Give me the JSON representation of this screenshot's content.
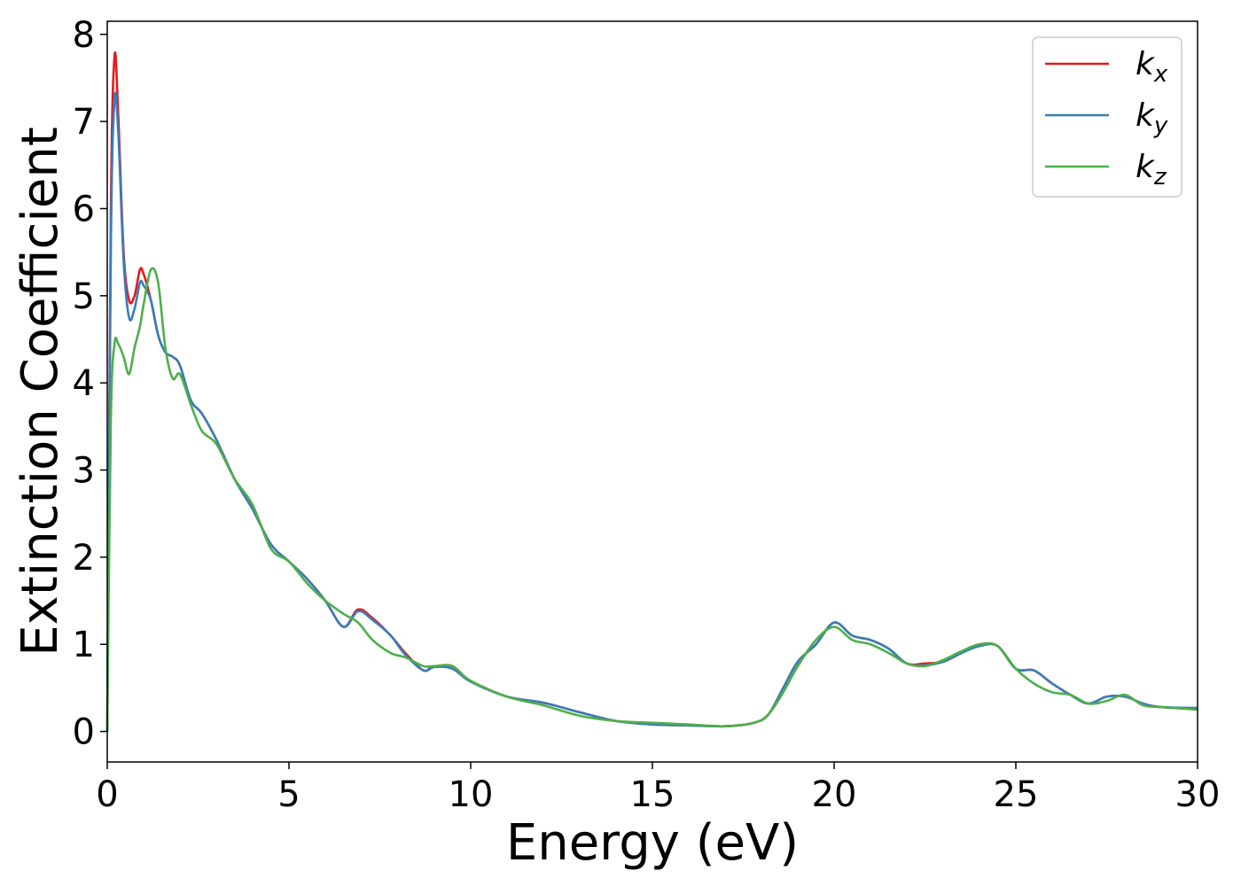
{
  "chart_data": {
    "type": "line",
    "xlabel": "Energy (eV)",
    "ylabel": "Extinction Coefficient",
    "xlim": [
      0,
      30
    ],
    "ylim": [
      -0.35,
      8.15
    ],
    "xticks": [
      0,
      5,
      10,
      15,
      20,
      25,
      30
    ],
    "xtick_labels": [
      "0",
      "5",
      "10",
      "15",
      "20",
      "25",
      "30"
    ],
    "yticks": [
      0,
      1,
      2,
      3,
      4,
      5,
      6,
      7,
      8
    ],
    "ytick_labels": [
      "0",
      "1",
      "2",
      "3",
      "4",
      "5",
      "6",
      "7",
      "8"
    ],
    "grid": false,
    "legend_position": "top-right",
    "series": [
      {
        "name": "k",
        "subscript": "x",
        "color": "#e41a1c",
        "x": [
          0,
          0.1,
          0.2,
          0.3,
          0.45,
          0.6,
          0.75,
          0.9,
          1.0,
          1.2,
          1.4,
          1.6,
          1.8,
          2.0,
          2.3,
          2.6,
          3.0,
          3.5,
          4.0,
          4.5,
          5.0,
          5.5,
          6.0,
          6.5,
          6.9,
          7.3,
          7.8,
          8.2,
          8.7,
          9.0,
          9.5,
          10.0,
          11.0,
          12.0,
          13.0,
          14.0,
          15.0,
          16.0,
          17.0,
          17.8,
          18.2,
          18.6,
          19.0,
          19.5,
          20.0,
          20.5,
          21.0,
          21.5,
          22.0,
          22.5,
          23.0,
          23.5,
          24.0,
          24.5,
          25.0,
          25.5,
          26.0,
          26.5,
          27.0,
          27.5,
          28.0,
          28.5,
          29.0,
          30.0
        ],
        "y": [
          0,
          6.0,
          7.75,
          7.1,
          5.5,
          4.95,
          5.0,
          5.3,
          5.25,
          4.95,
          4.55,
          4.35,
          4.3,
          4.2,
          3.8,
          3.65,
          3.35,
          2.9,
          2.55,
          2.15,
          1.95,
          1.75,
          1.5,
          1.2,
          1.4,
          1.3,
          1.1,
          0.9,
          0.7,
          0.75,
          0.72,
          0.58,
          0.4,
          0.33,
          0.22,
          0.12,
          0.08,
          0.07,
          0.06,
          0.1,
          0.2,
          0.5,
          0.8,
          1.0,
          1.25,
          1.1,
          1.05,
          0.95,
          0.78,
          0.78,
          0.8,
          0.9,
          1.0,
          0.98,
          0.72,
          0.7,
          0.55,
          0.42,
          0.32,
          0.4,
          0.4,
          0.32,
          0.28,
          0.26
        ]
      },
      {
        "name": "k",
        "subscript": "y",
        "color": "#377eb8",
        "x": [
          0,
          0.1,
          0.2,
          0.3,
          0.45,
          0.6,
          0.75,
          0.9,
          1.0,
          1.2,
          1.4,
          1.6,
          1.8,
          2.0,
          2.3,
          2.6,
          3.0,
          3.5,
          4.0,
          4.5,
          5.0,
          5.5,
          6.0,
          6.5,
          6.9,
          7.3,
          7.8,
          8.2,
          8.7,
          9.0,
          9.5,
          10.0,
          11.0,
          12.0,
          13.0,
          14.0,
          15.0,
          16.0,
          17.0,
          17.8,
          18.2,
          18.6,
          19.0,
          19.5,
          20.0,
          20.5,
          21.0,
          21.5,
          22.0,
          22.5,
          23.0,
          23.5,
          24.0,
          24.5,
          25.0,
          25.5,
          26.0,
          26.5,
          27.0,
          27.5,
          28.0,
          28.5,
          29.0,
          30.0
        ],
        "y": [
          0,
          5.6,
          7.25,
          6.9,
          5.4,
          4.75,
          4.85,
          5.15,
          5.12,
          4.95,
          4.55,
          4.35,
          4.3,
          4.2,
          3.8,
          3.65,
          3.35,
          2.9,
          2.55,
          2.15,
          1.95,
          1.75,
          1.5,
          1.2,
          1.38,
          1.28,
          1.1,
          0.88,
          0.7,
          0.74,
          0.72,
          0.57,
          0.4,
          0.33,
          0.22,
          0.12,
          0.08,
          0.07,
          0.06,
          0.1,
          0.2,
          0.5,
          0.8,
          1.0,
          1.25,
          1.1,
          1.05,
          0.95,
          0.78,
          0.76,
          0.8,
          0.9,
          0.98,
          0.98,
          0.72,
          0.7,
          0.55,
          0.42,
          0.32,
          0.4,
          0.4,
          0.32,
          0.28,
          0.27
        ]
      },
      {
        "name": "k",
        "subscript": "z",
        "color": "#4daf4a",
        "x": [
          0,
          0.1,
          0.2,
          0.3,
          0.45,
          0.6,
          0.75,
          0.9,
          1.0,
          1.2,
          1.4,
          1.6,
          1.8,
          2.0,
          2.3,
          2.6,
          3.0,
          3.5,
          4.0,
          4.5,
          5.0,
          5.5,
          6.0,
          6.5,
          6.9,
          7.3,
          7.8,
          8.2,
          8.7,
          9.0,
          9.5,
          10.0,
          11.0,
          12.0,
          13.0,
          14.0,
          15.0,
          16.0,
          17.0,
          17.8,
          18.2,
          18.6,
          19.0,
          19.5,
          20.0,
          20.5,
          21.0,
          21.5,
          22.0,
          22.5,
          23.0,
          23.5,
          24.0,
          24.5,
          25.0,
          25.5,
          26.0,
          26.5,
          27.0,
          27.5,
          28.0,
          28.5,
          29.0,
          30.0
        ],
        "y": [
          0,
          3.6,
          4.45,
          4.45,
          4.3,
          4.1,
          4.4,
          4.65,
          4.9,
          5.3,
          5.15,
          4.4,
          4.05,
          4.1,
          3.75,
          3.45,
          3.3,
          2.9,
          2.6,
          2.1,
          1.95,
          1.7,
          1.5,
          1.35,
          1.25,
          1.05,
          0.9,
          0.85,
          0.75,
          0.75,
          0.75,
          0.58,
          0.4,
          0.3,
          0.18,
          0.12,
          0.1,
          0.08,
          0.06,
          0.1,
          0.2,
          0.45,
          0.75,
          1.05,
          1.2,
          1.05,
          1.0,
          0.9,
          0.78,
          0.75,
          0.82,
          0.92,
          1.0,
          0.98,
          0.72,
          0.55,
          0.45,
          0.42,
          0.32,
          0.35,
          0.42,
          0.3,
          0.28,
          0.25
        ]
      }
    ]
  }
}
